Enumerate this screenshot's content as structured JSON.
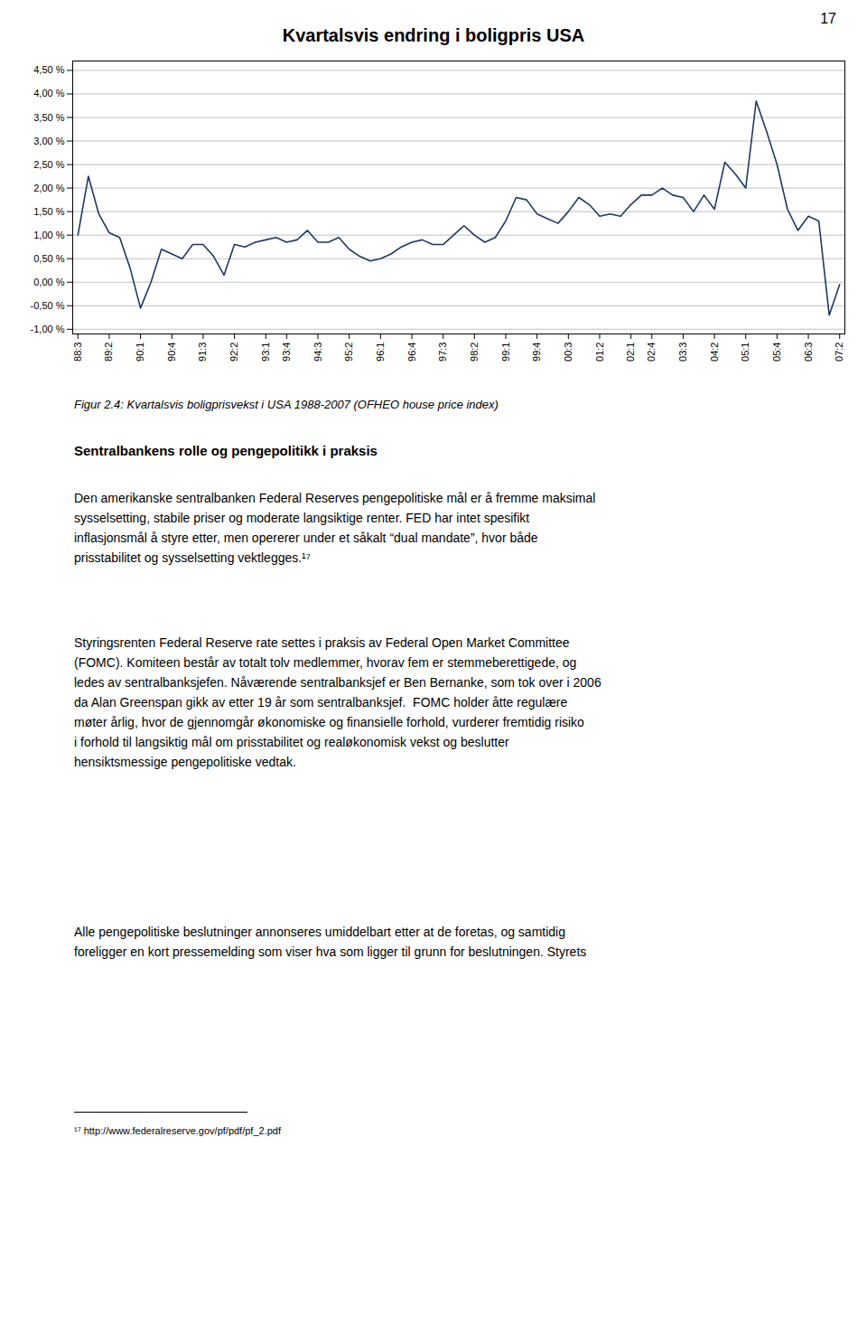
{
  "chart_data": {
    "type": "line",
    "title": "Kvartalsvis endring i boligpris USA",
    "categories": [
      "88:3",
      null,
      null,
      "89:2",
      null,
      null,
      "90:1",
      null,
      null,
      "90:4",
      null,
      null,
      "91:3",
      null,
      null,
      "92:2",
      null,
      null,
      "93:1",
      null,
      "93:4",
      null,
      null,
      "94:3",
      null,
      null,
      "95:2",
      null,
      null,
      "96:1",
      null,
      null,
      "96:4",
      null,
      null,
      "97:3",
      null,
      null,
      "98:2",
      null,
      null,
      "99:1",
      null,
      null,
      "99:4",
      null,
      null,
      "00:3",
      null,
      null,
      "01:2",
      null,
      null,
      "02:1",
      null,
      "02:4",
      null,
      null,
      "03:3",
      null,
      null,
      "04:2",
      null,
      null,
      "05:1",
      null,
      null,
      "05:4",
      null,
      null,
      "06:3",
      null,
      null,
      "07:2"
    ],
    "values": [
      1.0,
      2.25,
      1.45,
      1.05,
      0.95,
      0.3,
      -0.55,
      0.0,
      0.7,
      0.6,
      0.5,
      0.8,
      0.8,
      0.55,
      0.15,
      0.8,
      0.75,
      0.85,
      0.9,
      0.95,
      0.85,
      0.9,
      1.1,
      0.85,
      0.85,
      0.95,
      0.7,
      0.55,
      0.45,
      0.5,
      0.6,
      0.75,
      0.85,
      0.9,
      0.8,
      0.8,
      1.0,
      1.2,
      1.0,
      0.85,
      0.95,
      1.3,
      1.8,
      1.75,
      1.45,
      1.35,
      1.25,
      1.5,
      1.8,
      1.65,
      1.4,
      1.45,
      1.4,
      1.65,
      1.85,
      1.85,
      2.0,
      1.85,
      1.8,
      1.5,
      1.85,
      1.55,
      2.55,
      2.3,
      2.0,
      3.85,
      3.2,
      2.5,
      1.55,
      1.1,
      1.4,
      1.3,
      -0.7,
      -0.05
    ],
    "color": "#1F3864",
    "ylim": [
      -1.1,
      4.7
    ],
    "yticks": [
      {
        "value": 4.5,
        "label": "4,50 %"
      },
      {
        "value": 4.0,
        "label": "4,00 %"
      },
      {
        "value": 3.5,
        "label": "3,50 %"
      },
      {
        "value": 3.0,
        "label": "3,00 %"
      },
      {
        "value": 2.5,
        "label": "2,50 %"
      },
      {
        "value": 2.0,
        "label": "2,00 %"
      },
      {
        "value": 1.5,
        "label": "1,50 %"
      },
      {
        "value": 1.0,
        "label": "1,00 %"
      },
      {
        "value": 0.5,
        "label": "0,50 %"
      },
      {
        "value": 0.0,
        "label": "0,00 %"
      },
      {
        "value": -0.5,
        "label": "-0,50 %"
      },
      {
        "value": -1.0,
        "label": "-1,00 %"
      }
    ],
    "grid": true
  },
  "page_number": "17",
  "figure_caption": "Figur 2.4: Kvartalsvis boligprisvekst i USA 1988-2007 (OFHEO house price index)",
  "section_heading": "Sentralbankens rolle og pengepolitikk i praksis",
  "paragraphs": [
    [
      "Den amerikanske sentralbanken Federal Reserves pengepolitiske mål er å fremme maksimal",
      "sysselsetting, stabile priser og moderate langsiktige renter. FED har intet spesifikt",
      "inflasjonsmål å styre etter, men opererer under et såkalt “dual mandate”, hvor både",
      "prisstabilitet og sysselsetting vektlegges.¹⁷"
    ],
    [
      "Styringsrenten Federal Reserve rate settes i praksis av Federal Open Market Committee",
      "(FOMC). Komiteen består av totalt tolv medlemmer, hvorav fem er stemmeberettigede, og",
      "ledes av sentralbanksjefen. Nåværende sentralbanksjef er Ben Bernanke, som tok over i 2006",
      "da Alan Greenspan gikk av etter 19 år som sentralbanksjef.  FOMC holder åtte regulære",
      "møter årlig, hvor de gjennomgår økonomiske og finansielle forhold, vurderer fremtidig risiko",
      "i forhold til langsiktig mål om prisstabilitet og realøkonomisk vekst og beslutter",
      "hensiktsmessige pengepolitiske vedtak."
    ],
    [
      "Alle pengepolitiske beslutninger annonseres umiddelbart etter at de foretas, og samtidig",
      "foreligger en kort pressemelding som viser hva som ligger til grunn for beslutningen. Styrets"
    ]
  ],
  "footnote": "¹⁷ http://www.federalreserve.gov/pf/pdf/pf_2.pdf"
}
